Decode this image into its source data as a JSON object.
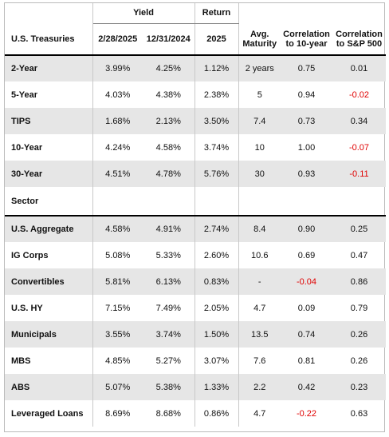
{
  "header": {
    "groups": [
      "Yield",
      "Return"
    ],
    "columns": [
      "U.S. Treasuries",
      "2/28/2025",
      "12/31/2024",
      "2025",
      "Avg. Maturity",
      "Correlation to 10-year",
      "Correlation to S&P 500"
    ]
  },
  "sections": [
    {
      "rows": [
        [
          "2-Year",
          "3.99%",
          "4.25%",
          "1.12%",
          "2 years",
          "0.75",
          "0.01"
        ],
        [
          "5-Year",
          "4.03%",
          "4.38%",
          "2.38%",
          "5",
          "0.94",
          "-0.02"
        ],
        [
          "TIPS",
          "1.68%",
          "2.13%",
          "3.50%",
          "7.4",
          "0.73",
          "0.34"
        ],
        [
          "10-Year",
          "4.24%",
          "4.58%",
          "3.74%",
          "10",
          "1.00",
          "-0.07"
        ],
        [
          "30-Year",
          "4.51%",
          "4.78%",
          "5.76%",
          "30",
          "0.93",
          "-0.11"
        ]
      ]
    },
    {
      "title": "Sector",
      "rows": [
        [
          "U.S. Aggregate",
          "4.58%",
          "4.91%",
          "2.74%",
          "8.4",
          "0.90",
          "0.25"
        ],
        [
          "IG Corps",
          "5.08%",
          "5.33%",
          "2.60%",
          "10.6",
          "0.69",
          "0.47"
        ],
        [
          "Convertibles",
          "5.81%",
          "6.13%",
          "0.83%",
          "-",
          "-0.04",
          "0.86"
        ],
        [
          "U.S. HY",
          "7.15%",
          "7.49%",
          "2.05%",
          "4.7",
          "0.09",
          "0.79"
        ],
        [
          "Municipals",
          "3.55%",
          "3.74%",
          "1.50%",
          "13.5",
          "0.74",
          "0.26"
        ],
        [
          "MBS",
          "4.85%",
          "5.27%",
          "3.07%",
          "7.6",
          "0.81",
          "0.26"
        ],
        [
          "ABS",
          "5.07%",
          "5.38%",
          "1.33%",
          "2.2",
          "0.42",
          "0.23"
        ],
        [
          "Leveraged Loans",
          "8.69%",
          "8.68%",
          "0.86%",
          "4.7",
          "-0.22",
          "0.63"
        ]
      ]
    }
  ]
}
